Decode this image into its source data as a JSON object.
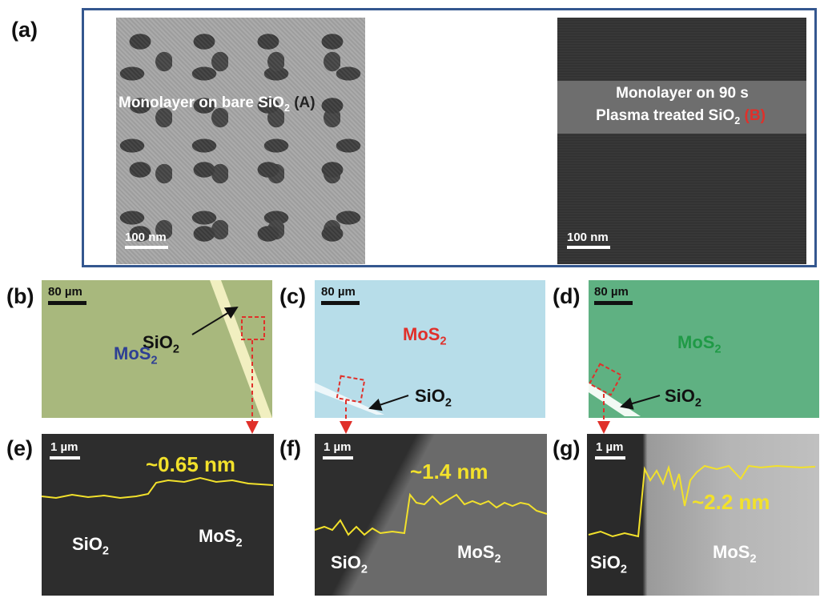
{
  "panel_labels": {
    "a": "(a)",
    "b": "(b)",
    "c": "(c)",
    "d": "(d)",
    "e": "(e)",
    "f": "(f)",
    "g": "(g)"
  },
  "panel_a": {
    "left": {
      "text": "Monolayer on bare SiO",
      "sub": "2",
      "marker": " (A)",
      "scale": "100 nm"
    },
    "right": {
      "line1": "Monolayer on 90 s",
      "line2": "Plasma treated SiO",
      "sub": "2",
      "marker": " (B)",
      "scale": "100 nm"
    }
  },
  "optical": {
    "b": {
      "scale": "80 µm",
      "sio2": "SiO",
      "sio2_sub": "2",
      "mos2": "MoS",
      "mos2_sub": "2",
      "mos2_color": "#2e3f94"
    },
    "c": {
      "scale": "80 µm",
      "sio2": "SiO",
      "sio2_sub": "2",
      "mos2": "MoS",
      "mos2_sub": "2",
      "mos2_color": "#e0302a"
    },
    "d": {
      "scale": "80 µm",
      "sio2": "SiO",
      "sio2_sub": "2",
      "mos2": "MoS",
      "mos2_sub": "2",
      "mos2_color": "#1f9a46"
    }
  },
  "afm": {
    "e": {
      "scale": "1 µm",
      "height": "~0.65 nm",
      "sio2": "SiO",
      "sio2_sub": "2",
      "mos2": "MoS",
      "mos2_sub": "2"
    },
    "f": {
      "scale": "1 µm",
      "height": "~1.4 nm",
      "sio2": "SiO",
      "sio2_sub": "2",
      "mos2": "MoS",
      "mos2_sub": "2"
    },
    "g": {
      "scale": "1 µm",
      "height": "~2.2 nm",
      "sio2": "SiO",
      "sio2_sub": "2",
      "mos2": "MoS",
      "mos2_sub": "2"
    }
  },
  "colors": {
    "frame": "#34578f",
    "marker_a": "#222222",
    "marker_b": "#e0302a",
    "arrow_red": "#e0302a",
    "profile": "#f2e12b"
  }
}
